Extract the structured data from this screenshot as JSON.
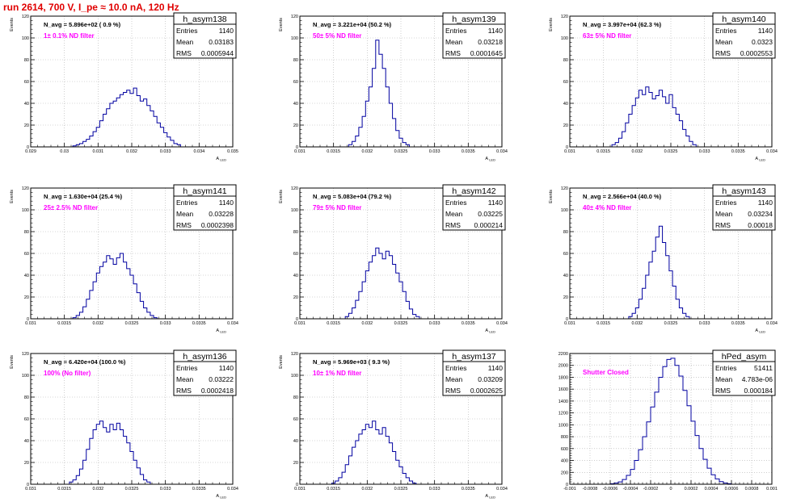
{
  "page": {
    "title": "run 2614,   700 V, I_pe ≈ 10.0 nA, 120 Hz"
  },
  "colors": {
    "histogram": "#0000a0",
    "title_red": "#e00000",
    "filter_label": "#ff00ff",
    "grid": "#b0b0b0",
    "axis": "#000000"
  },
  "chart_data": [
    {
      "type": "histogram",
      "name": "h_asym138",
      "ylabel": "Events",
      "xlabel": "A_LED",
      "xlim": [
        0.029,
        0.035
      ],
      "ylim": [
        0,
        120
      ],
      "xticks": [
        "0.029",
        "0.03",
        "0.031",
        "0.032",
        "0.033",
        "0.034",
        "0.035"
      ],
      "yticks": [
        "0",
        "20",
        "40",
        "60",
        "80",
        "100",
        "120"
      ],
      "grid": true,
      "navg_label": "N_avg = 5.896e+02 ( 0.9 %)",
      "filter_label": "1± 0.1% ND filter",
      "stats": {
        "entries": "1140",
        "mean": "0.03183",
        "rms": "0.0005944"
      },
      "bins": {
        "x": [
          0.0303,
          0.0304,
          0.0305,
          0.0306,
          0.0307,
          0.0308,
          0.0309,
          0.031,
          0.0311,
          0.0312,
          0.0313,
          0.0314,
          0.0315,
          0.0316,
          0.0317,
          0.0318,
          0.0319,
          0.032,
          0.0321,
          0.0322,
          0.0323,
          0.0324,
          0.0325,
          0.0326,
          0.0327,
          0.0328,
          0.0329,
          0.033,
          0.0331,
          0.0332,
          0.0333,
          0.0334
        ],
        "counts": [
          1,
          2,
          3,
          5,
          7,
          10,
          14,
          18,
          24,
          30,
          35,
          40,
          42,
          45,
          48,
          50,
          52,
          49,
          54,
          47,
          42,
          44,
          38,
          33,
          28,
          22,
          18,
          13,
          9,
          6,
          3,
          2
        ]
      }
    },
    {
      "type": "histogram",
      "name": "h_asym139",
      "ylabel": "Events",
      "xlabel": "A_LED",
      "xlim": [
        0.031,
        0.034
      ],
      "ylim": [
        0,
        120
      ],
      "xticks": [
        "0.031",
        "0.0315",
        "0.032",
        "0.0325",
        "0.033",
        "0.0335",
        "0.034"
      ],
      "yticks": [
        "0",
        "20",
        "40",
        "60",
        "80",
        "100",
        "120"
      ],
      "grid": true,
      "navg_label": "N_avg = 3.221e+04 (50.2 %)",
      "filter_label": "50± 5% ND filter",
      "stats": {
        "entries": "1140",
        "mean": "0.03218",
        "rms": "0.0001645"
      },
      "bins": {
        "x": [
          0.03175,
          0.0318,
          0.03185,
          0.0319,
          0.03195,
          0.032,
          0.03205,
          0.0321,
          0.03215,
          0.0322,
          0.03225,
          0.0323,
          0.03235,
          0.0324,
          0.03245,
          0.0325,
          0.03255,
          0.0326
        ],
        "counts": [
          2,
          5,
          10,
          18,
          28,
          42,
          55,
          72,
          98,
          85,
          72,
          55,
          40,
          26,
          15,
          8,
          4,
          2
        ]
      }
    },
    {
      "type": "histogram",
      "name": "h_asym140",
      "ylabel": "Events",
      "xlabel": "A_LED",
      "xlim": [
        0.031,
        0.034
      ],
      "ylim": [
        0,
        120
      ],
      "xticks": [
        "0.031",
        "0.0315",
        "0.032",
        "0.0325",
        "0.033",
        "0.0335",
        "0.034"
      ],
      "yticks": [
        "0",
        "20",
        "40",
        "60",
        "80",
        "100",
        "120"
      ],
      "grid": true,
      "navg_label": "N_avg = 3.997e+04 (62.3 %)",
      "filter_label": "63± 5% ND filter",
      "stats": {
        "entries": "1140",
        "mean": "0.0323",
        "rms": "0.0002553"
      },
      "bins": {
        "x": [
          0.03165,
          0.0317,
          0.03175,
          0.0318,
          0.03185,
          0.0319,
          0.03195,
          0.032,
          0.03205,
          0.0321,
          0.03215,
          0.0322,
          0.03225,
          0.0323,
          0.03235,
          0.0324,
          0.03245,
          0.0325,
          0.03255,
          0.0326,
          0.03265,
          0.0327,
          0.03275,
          0.0328,
          0.03285
        ],
        "counts": [
          2,
          4,
          8,
          14,
          22,
          30,
          38,
          45,
          52,
          48,
          55,
          50,
          44,
          47,
          52,
          46,
          40,
          48,
          36,
          30,
          24,
          16,
          10,
          5,
          2
        ]
      }
    },
    {
      "type": "histogram",
      "name": "h_asym141",
      "ylabel": "Events",
      "xlabel": "A_LED",
      "xlim": [
        0.031,
        0.034
      ],
      "ylim": [
        0,
        120
      ],
      "xticks": [
        "0.031",
        "0.0315",
        "0.032",
        "0.0325",
        "0.033",
        "0.0335",
        "0.034"
      ],
      "yticks": [
        "0",
        "20",
        "40",
        "60",
        "80",
        "100",
        "120"
      ],
      "grid": true,
      "navg_label": "N_avg = 1.630e+04 (25.4 %)",
      "filter_label": "25± 2.5% ND filter",
      "stats": {
        "entries": "1140",
        "mean": "0.03228",
        "rms": "0.0002398"
      },
      "bins": {
        "x": [
          0.03165,
          0.0317,
          0.03175,
          0.0318,
          0.03185,
          0.0319,
          0.03195,
          0.032,
          0.03205,
          0.0321,
          0.03215,
          0.0322,
          0.03225,
          0.0323,
          0.03235,
          0.0324,
          0.03245,
          0.0325,
          0.03255,
          0.0326,
          0.03265,
          0.0327,
          0.03275,
          0.0328,
          0.03285
        ],
        "counts": [
          1,
          3,
          6,
          11,
          18,
          26,
          34,
          42,
          48,
          52,
          58,
          55,
          50,
          56,
          60,
          52,
          46,
          40,
          32,
          24,
          16,
          10,
          6,
          3,
          1
        ]
      }
    },
    {
      "type": "histogram",
      "name": "h_asym142",
      "ylabel": "Events",
      "xlabel": "A_LED",
      "xlim": [
        0.031,
        0.034
      ],
      "ylim": [
        0,
        120
      ],
      "xticks": [
        "0.031",
        "0.0315",
        "0.032",
        "0.0325",
        "0.033",
        "0.0335",
        "0.034"
      ],
      "yticks": [
        "0",
        "20",
        "40",
        "60",
        "80",
        "100",
        "120"
      ],
      "grid": true,
      "navg_label": "N_avg = 5.083e+04 (79.2 %)",
      "filter_label": "79± 5% ND filter",
      "stats": {
        "entries": "1140",
        "mean": "0.03225",
        "rms": "0.000214"
      },
      "bins": {
        "x": [
          0.0317,
          0.03175,
          0.0318,
          0.03185,
          0.0319,
          0.03195,
          0.032,
          0.03205,
          0.0321,
          0.03215,
          0.0322,
          0.03225,
          0.0323,
          0.03235,
          0.0324,
          0.03245,
          0.0325,
          0.03255,
          0.0326,
          0.03265,
          0.0327,
          0.03275
        ],
        "counts": [
          2,
          5,
          10,
          17,
          25,
          34,
          44,
          52,
          58,
          65,
          60,
          55,
          62,
          58,
          50,
          42,
          34,
          25,
          16,
          9,
          4,
          2
        ]
      }
    },
    {
      "type": "histogram",
      "name": "h_asym143",
      "ylabel": "Events",
      "xlabel": "A_LED",
      "xlim": [
        0.031,
        0.034
      ],
      "ylim": [
        0,
        120
      ],
      "xticks": [
        "0.031",
        "0.0315",
        "0.032",
        "0.0325",
        "0.033",
        "0.0335",
        "0.034"
      ],
      "yticks": [
        "0",
        "20",
        "40",
        "60",
        "80",
        "100",
        "120"
      ],
      "grid": true,
      "navg_label": "N_avg = 2.566e+04 (40.0 %)",
      "filter_label": "40± 4% ND filter",
      "stats": {
        "entries": "1140",
        "mean": "0.03234",
        "rms": "0.00018"
      },
      "bins": {
        "x": [
          0.0319,
          0.03195,
          0.032,
          0.03205,
          0.0321,
          0.03215,
          0.0322,
          0.03225,
          0.0323,
          0.03235,
          0.0324,
          0.03245,
          0.0325,
          0.03255,
          0.0326,
          0.03265,
          0.0327,
          0.03275
        ],
        "counts": [
          2,
          5,
          10,
          18,
          28,
          40,
          52,
          62,
          75,
          85,
          70,
          58,
          44,
          30,
          18,
          10,
          5,
          2
        ]
      }
    },
    {
      "type": "histogram",
      "name": "h_asym136",
      "ylabel": "Events",
      "xlabel": "A_LED",
      "xlim": [
        0.031,
        0.034
      ],
      "ylim": [
        0,
        120
      ],
      "xticks": [
        "0.031",
        "0.0315",
        "0.032",
        "0.0325",
        "0.033",
        "0.0335",
        "0.034"
      ],
      "yticks": [
        "0",
        "20",
        "40",
        "60",
        "80",
        "100",
        "120"
      ],
      "grid": true,
      "navg_label": "N_avg = 6.420e+04 (100.0 %)",
      "filter_label": "100% (No filter)",
      "stats": {
        "entries": "1140",
        "mean": "0.03222",
        "rms": "0.0002418"
      },
      "bins": {
        "x": [
          0.0316,
          0.03165,
          0.0317,
          0.03175,
          0.0318,
          0.03185,
          0.0319,
          0.03195,
          0.032,
          0.03205,
          0.0321,
          0.03215,
          0.0322,
          0.03225,
          0.0323,
          0.03235,
          0.0324,
          0.03245,
          0.0325,
          0.03255,
          0.0326,
          0.03265,
          0.0327,
          0.03275
        ],
        "counts": [
          2,
          4,
          8,
          14,
          22,
          32,
          42,
          50,
          55,
          58,
          52,
          48,
          55,
          50,
          56,
          50,
          44,
          38,
          30,
          22,
          15,
          9,
          4,
          2
        ]
      }
    },
    {
      "type": "histogram",
      "name": "h_asym137",
      "ylabel": "Events",
      "xlabel": "A_LED",
      "xlim": [
        0.031,
        0.034
      ],
      "ylim": [
        0,
        120
      ],
      "xticks": [
        "0.031",
        "0.0315",
        "0.032",
        "0.0325",
        "0.033",
        "0.0335",
        "0.034"
      ],
      "yticks": [
        "0",
        "20",
        "40",
        "60",
        "80",
        "100",
        "120"
      ],
      "grid": true,
      "navg_label": "N_avg = 5.969e+03 ( 9.3 %)",
      "filter_label": "10± 1% ND filter",
      "stats": {
        "entries": "1140",
        "mean": "0.03209",
        "rms": "0.0002625"
      },
      "bins": {
        "x": [
          0.0315,
          0.03155,
          0.0316,
          0.03165,
          0.0317,
          0.03175,
          0.0318,
          0.03185,
          0.0319,
          0.03195,
          0.032,
          0.03205,
          0.0321,
          0.03215,
          0.0322,
          0.03225,
          0.0323,
          0.03235,
          0.0324,
          0.03245,
          0.0325,
          0.03255,
          0.0326,
          0.03265,
          0.0327
        ],
        "counts": [
          1,
          3,
          6,
          11,
          18,
          26,
          34,
          40,
          46,
          50,
          55,
          52,
          58,
          50,
          46,
          52,
          44,
          38,
          30,
          22,
          16,
          10,
          6,
          3,
          1
        ]
      }
    },
    {
      "type": "histogram",
      "name": "hPed_asym",
      "ylabel": "",
      "xlabel": "",
      "xlim": [
        -0.001,
        0.001
      ],
      "ylim": [
        0,
        2200
      ],
      "xticks": [
        "-0.001",
        "-0.0008",
        "-0.0006",
        "-0.0004",
        "-0.0002",
        "0",
        "0.0002",
        "0.0004",
        "0.0006",
        "0.0008",
        "0.001"
      ],
      "yticks": [
        "0",
        "200",
        "400",
        "600",
        "800",
        "1000",
        "1200",
        "1400",
        "1600",
        "1800",
        "2000",
        "2200"
      ],
      "grid": true,
      "navg_label": "",
      "filter_label": "Shutter Closed",
      "stats": {
        "entries": "51411",
        "mean": "4.783e-06",
        "rms": "0.000184"
      },
      "bins": {
        "x": [
          -0.00058,
          -0.00054,
          -0.0005,
          -0.00046,
          -0.00042,
          -0.00038,
          -0.00034,
          -0.0003,
          -0.00026,
          -0.00022,
          -0.00018,
          -0.00014,
          -0.0001,
          -6e-05,
          -2e-05,
          2e-05,
          6e-05,
          0.0001,
          0.00014,
          0.00018,
          0.00022,
          0.00026,
          0.0003,
          0.00034,
          0.00038,
          0.00042,
          0.00046,
          0.0005,
          0.00054,
          0.00058
        ],
        "counts": [
          8,
          20,
          40,
          80,
          150,
          250,
          400,
          580,
          800,
          1050,
          1300,
          1550,
          1800,
          1980,
          2100,
          2120,
          2000,
          1820,
          1580,
          1320,
          1060,
          820,
          600,
          420,
          270,
          160,
          90,
          45,
          20,
          8
        ]
      }
    }
  ]
}
